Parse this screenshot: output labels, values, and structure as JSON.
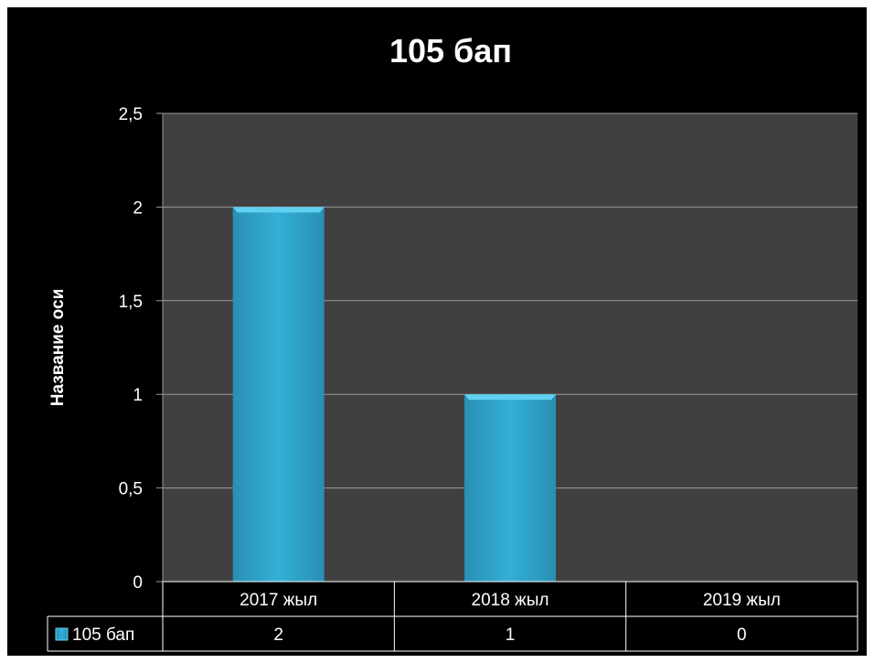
{
  "chart_data": {
    "type": "bar",
    "title": "105 бап",
    "xlabel": "",
    "ylabel": "Название оси",
    "categories": [
      "2017 жыл",
      "2018 жыл",
      "2019 жыл"
    ],
    "series": [
      {
        "name": "105 бап",
        "values": [
          2,
          1,
          0
        ],
        "value_labels": [
          "2",
          "1",
          "0"
        ]
      }
    ],
    "ylim": [
      0,
      2.5
    ],
    "yticks": [
      0,
      0.5,
      1,
      1.5,
      2,
      2.5
    ],
    "ytick_labels": [
      "0",
      "0,5",
      "1",
      "1,5",
      "2",
      "2,5"
    ],
    "grid": true,
    "legend": "data-table",
    "colors": {
      "background": "#000000",
      "plot_area": "#404040",
      "bar": "#33b0d6",
      "bar_light": "#5fd0f0",
      "bar_dark": "#2a8fb4",
      "gridline": "#9a9a9a",
      "text": "#ffffff"
    }
  }
}
